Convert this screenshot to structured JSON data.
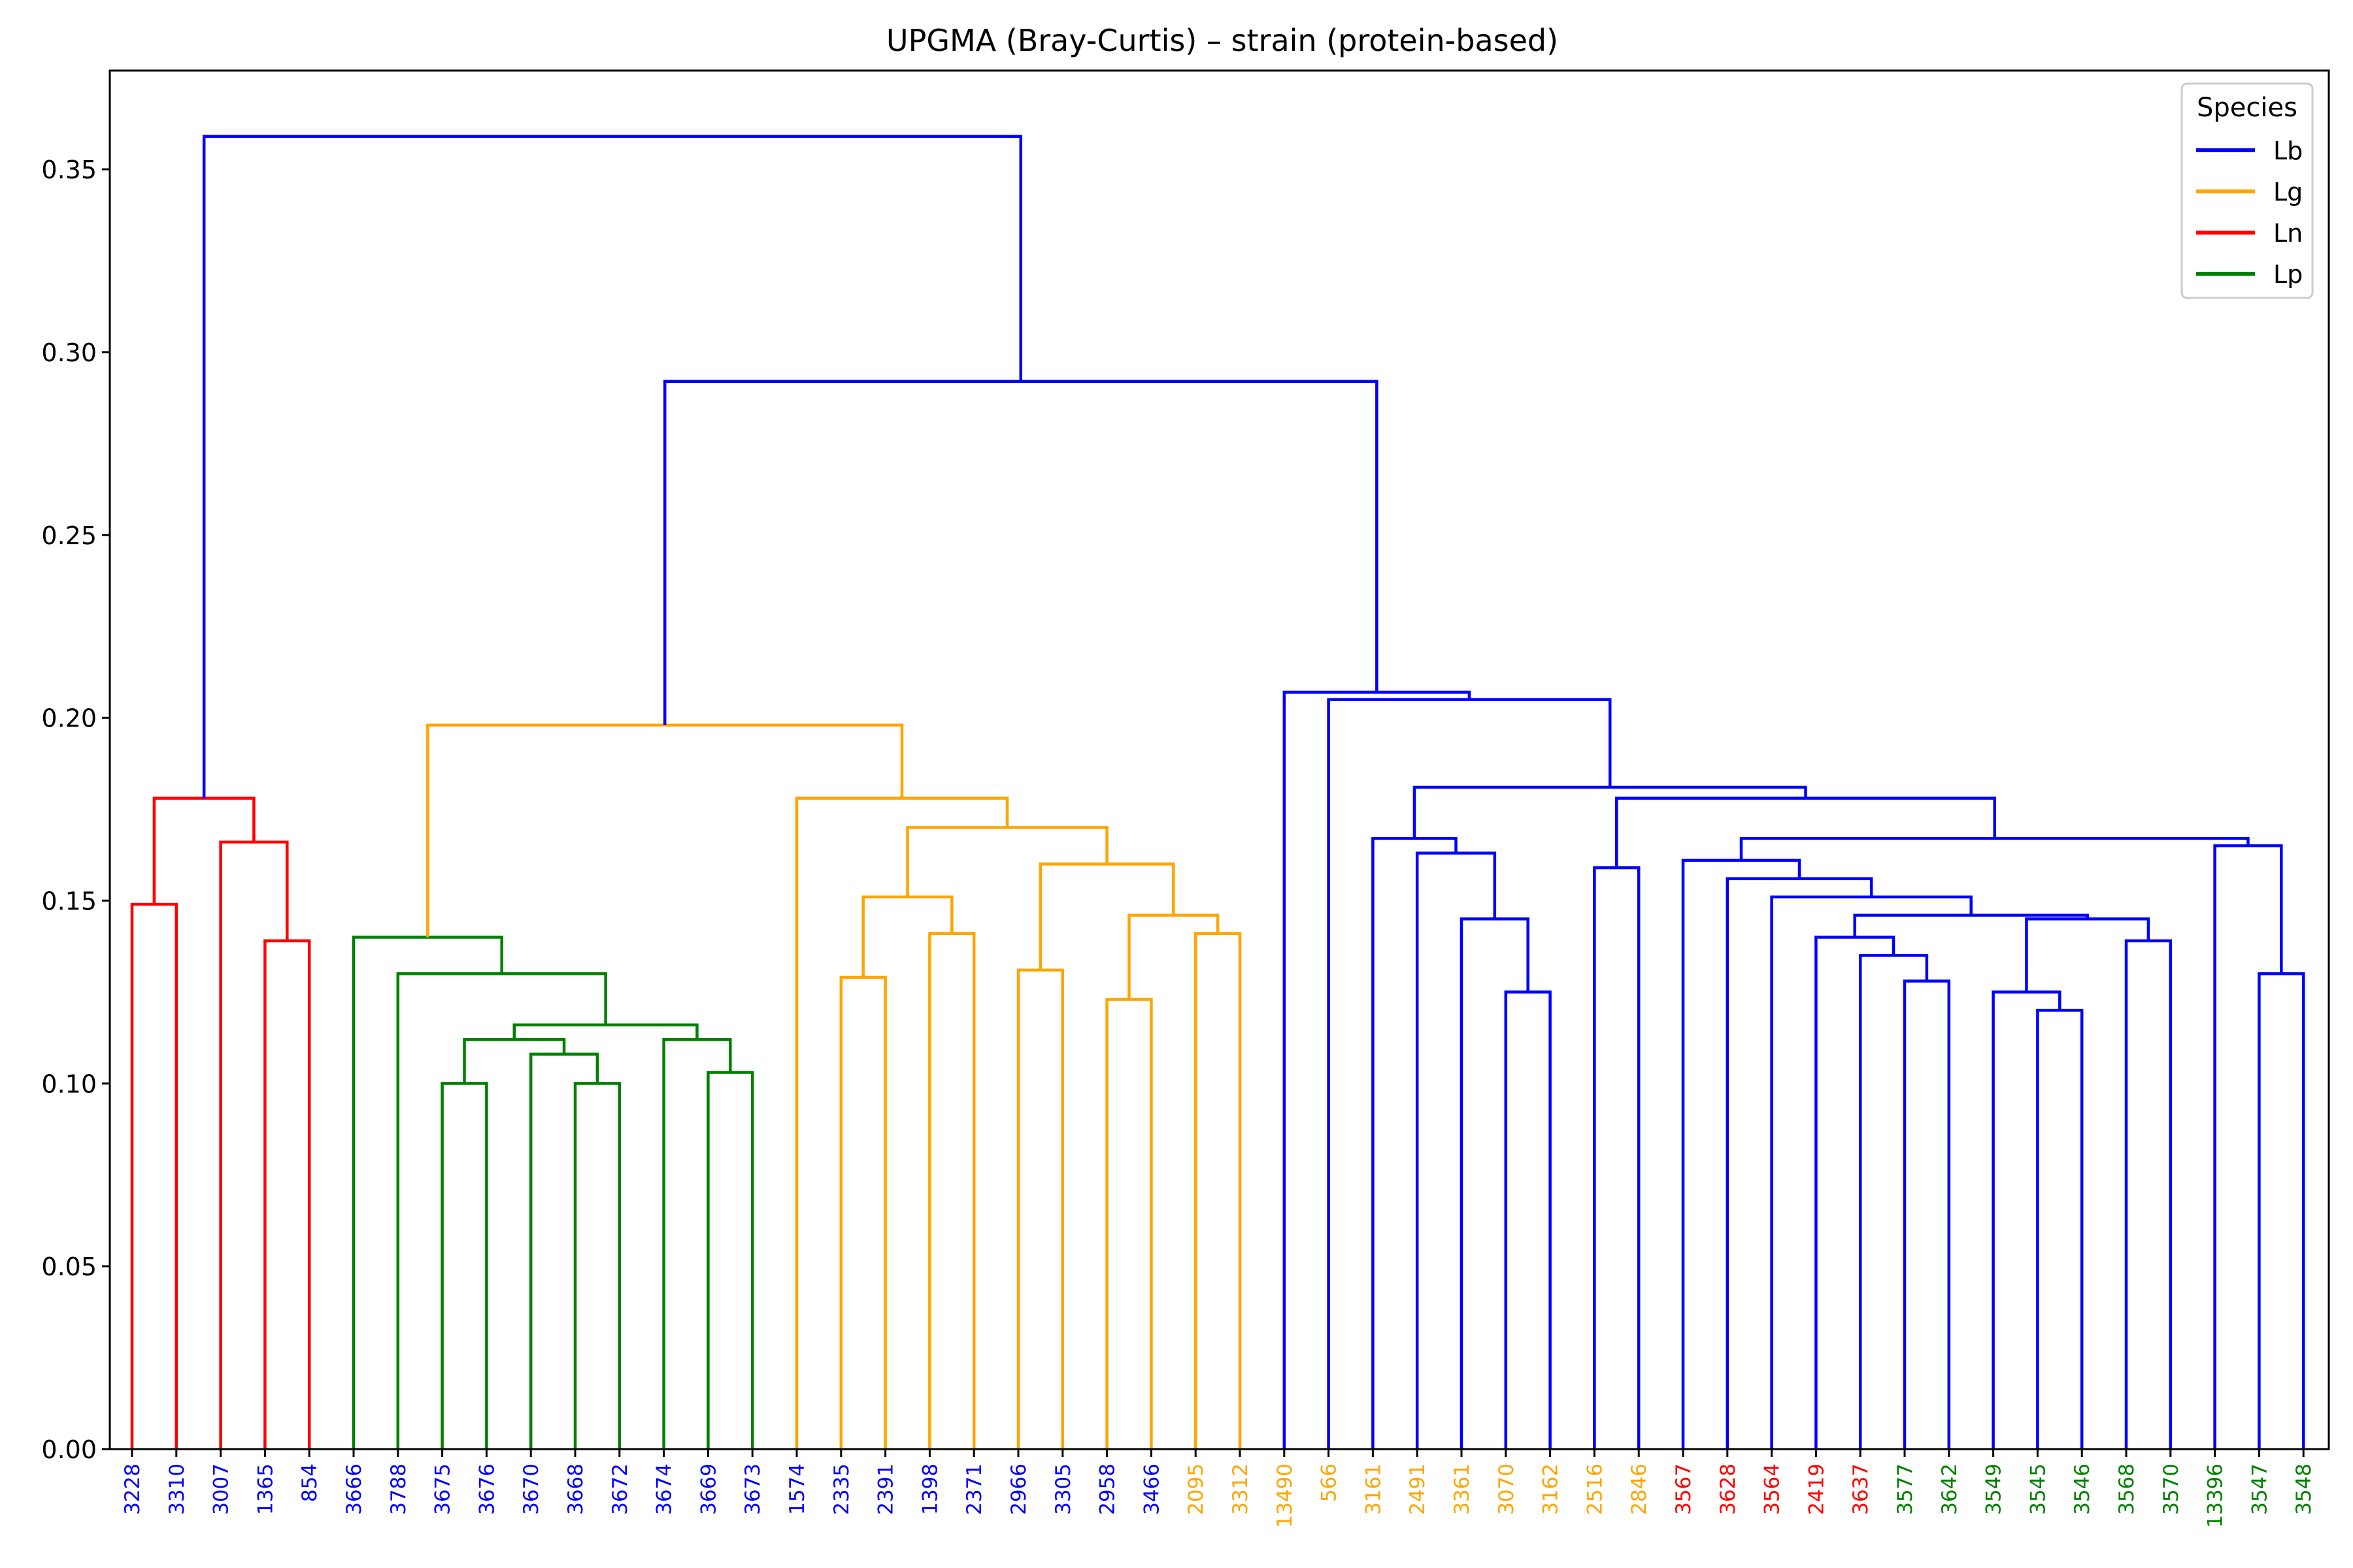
{
  "chart_data": {
    "type": "dendrogram",
    "title": "UPGMA (Bray-Curtis) – strain (protein-based)",
    "xlabel": "",
    "ylabel": "",
    "ylim": [
      0,
      0.377
    ],
    "yticks": [
      "0.00",
      "0.05",
      "0.10",
      "0.15",
      "0.20",
      "0.25",
      "0.30",
      "0.35"
    ],
    "grid": false,
    "legend": {
      "title": "Species",
      "placement": "top-right",
      "entries": [
        {
          "name": "Lb",
          "color": "#0000ff"
        },
        {
          "name": "Lg",
          "color": "#ffa500"
        },
        {
          "name": "Ln",
          "color": "#ff0000"
        },
        {
          "name": "Lp",
          "color": "#008000"
        }
      ]
    },
    "leaves": [
      {
        "label": "3228",
        "species": "Lb"
      },
      {
        "label": "3310",
        "species": "Lb"
      },
      {
        "label": "3007",
        "species": "Lb"
      },
      {
        "label": "1365",
        "species": "Lb"
      },
      {
        "label": "854",
        "species": "Lb"
      },
      {
        "label": "3666",
        "species": "Lb"
      },
      {
        "label": "3788",
        "species": "Lb"
      },
      {
        "label": "3675",
        "species": "Lb"
      },
      {
        "label": "3676",
        "species": "Lb"
      },
      {
        "label": "3670",
        "species": "Lb"
      },
      {
        "label": "3668",
        "species": "Lb"
      },
      {
        "label": "3672",
        "species": "Lb"
      },
      {
        "label": "3674",
        "species": "Lb"
      },
      {
        "label": "3669",
        "species": "Lb"
      },
      {
        "label": "3673",
        "species": "Lb"
      },
      {
        "label": "1574",
        "species": "Lb"
      },
      {
        "label": "2335",
        "species": "Lb"
      },
      {
        "label": "2391",
        "species": "Lb"
      },
      {
        "label": "1398",
        "species": "Lb"
      },
      {
        "label": "2371",
        "species": "Lb"
      },
      {
        "label": "2966",
        "species": "Lb"
      },
      {
        "label": "3305",
        "species": "Lb"
      },
      {
        "label": "2958",
        "species": "Lb"
      },
      {
        "label": "3466",
        "species": "Lb"
      },
      {
        "label": "2095",
        "species": "Lg"
      },
      {
        "label": "3312",
        "species": "Lg"
      },
      {
        "label": "13490",
        "species": "Lg"
      },
      {
        "label": "566",
        "species": "Lg"
      },
      {
        "label": "3161",
        "species": "Lg"
      },
      {
        "label": "2491",
        "species": "Lg"
      },
      {
        "label": "3361",
        "species": "Lg"
      },
      {
        "label": "3070",
        "species": "Lg"
      },
      {
        "label": "3162",
        "species": "Lg"
      },
      {
        "label": "2516",
        "species": "Lg"
      },
      {
        "label": "2846",
        "species": "Lg"
      },
      {
        "label": "3567",
        "species": "Ln"
      },
      {
        "label": "3628",
        "species": "Ln"
      },
      {
        "label": "3564",
        "species": "Ln"
      },
      {
        "label": "2419",
        "species": "Ln"
      },
      {
        "label": "3637",
        "species": "Ln"
      },
      {
        "label": "3577",
        "species": "Lp"
      },
      {
        "label": "3642",
        "species": "Lp"
      },
      {
        "label": "3549",
        "species": "Lp"
      },
      {
        "label": "3545",
        "species": "Lp"
      },
      {
        "label": "3546",
        "species": "Lp"
      },
      {
        "label": "3568",
        "species": "Lp"
      },
      {
        "label": "3570",
        "species": "Lp"
      },
      {
        "label": "13396",
        "species": "Lp"
      },
      {
        "label": "3547",
        "species": "Lp"
      },
      {
        "label": "3548",
        "species": "Lp"
      }
    ],
    "merges": [
      {
        "id": "n1",
        "height": 0.149,
        "children": [
          "3228",
          "3310"
        ],
        "color": "#ff0000"
      },
      {
        "id": "n2",
        "height": 0.139,
        "children": [
          "1365",
          "854"
        ],
        "color": "#ff0000"
      },
      {
        "id": "n3",
        "height": 0.166,
        "children": [
          "3007",
          "n2"
        ],
        "color": "#ff0000"
      },
      {
        "id": "n4",
        "height": 0.178,
        "children": [
          "n1",
          "n3"
        ],
        "color": "#ff0000"
      },
      {
        "id": "n5",
        "height": 0.1,
        "children": [
          "3675",
          "3676"
        ],
        "color": "#008000"
      },
      {
        "id": "n6",
        "height": 0.1,
        "children": [
          "3668",
          "3672"
        ],
        "color": "#008000"
      },
      {
        "id": "n7",
        "height": 0.108,
        "children": [
          "3670",
          "n6"
        ],
        "color": "#008000"
      },
      {
        "id": "n8",
        "height": 0.112,
        "children": [
          "n5",
          "n7"
        ],
        "color": "#008000"
      },
      {
        "id": "n9",
        "height": 0.103,
        "children": [
          "3669",
          "3673"
        ],
        "color": "#008000"
      },
      {
        "id": "n10",
        "height": 0.112,
        "children": [
          "3674",
          "n9"
        ],
        "color": "#008000"
      },
      {
        "id": "n11",
        "height": 0.116,
        "children": [
          "n8",
          "n10"
        ],
        "color": "#008000"
      },
      {
        "id": "n12",
        "height": 0.13,
        "children": [
          "3788",
          "n11"
        ],
        "color": "#008000"
      },
      {
        "id": "n13",
        "height": 0.14,
        "children": [
          "3666",
          "n12"
        ],
        "color": "#008000"
      },
      {
        "id": "n14",
        "height": 0.129,
        "children": [
          "2335",
          "2391"
        ],
        "color": "#ffa500"
      },
      {
        "id": "n15",
        "height": 0.141,
        "children": [
          "1398",
          "2371"
        ],
        "color": "#ffa500"
      },
      {
        "id": "n16",
        "height": 0.151,
        "children": [
          "n14",
          "n15"
        ],
        "color": "#ffa500"
      },
      {
        "id": "n17",
        "height": 0.131,
        "children": [
          "2966",
          "3305"
        ],
        "color": "#ffa500"
      },
      {
        "id": "n18",
        "height": 0.123,
        "children": [
          "2958",
          "3466"
        ],
        "color": "#ffa500"
      },
      {
        "id": "n19",
        "height": 0.141,
        "children": [
          "2095",
          "3312"
        ],
        "color": "#ffa500"
      },
      {
        "id": "n20",
        "height": 0.146,
        "children": [
          "n18",
          "n19"
        ],
        "color": "#ffa500"
      },
      {
        "id": "n21",
        "height": 0.16,
        "children": [
          "n17",
          "n20"
        ],
        "color": "#ffa500"
      },
      {
        "id": "n22",
        "height": 0.17,
        "children": [
          "n16",
          "n21"
        ],
        "color": "#ffa500"
      },
      {
        "id": "n23",
        "height": 0.178,
        "children": [
          "1574",
          "n22"
        ],
        "color": "#ffa500"
      },
      {
        "id": "n24",
        "height": 0.198,
        "children": [
          "n13",
          "n23"
        ],
        "color": "#ffa500"
      },
      {
        "id": "n25",
        "height": 0.125,
        "children": [
          "3070",
          "3162"
        ],
        "color": "#0000ff"
      },
      {
        "id": "n26",
        "height": 0.145,
        "children": [
          "3361",
          "n25"
        ],
        "color": "#0000ff"
      },
      {
        "id": "n27",
        "height": 0.163,
        "children": [
          "2491",
          "n26"
        ],
        "color": "#0000ff"
      },
      {
        "id": "n28",
        "height": 0.167,
        "children": [
          "3161",
          "n27"
        ],
        "color": "#0000ff"
      },
      {
        "id": "n29",
        "height": 0.159,
        "children": [
          "2516",
          "2846"
        ],
        "color": "#0000ff"
      },
      {
        "id": "n30",
        "height": 0.128,
        "children": [
          "3577",
          "3642"
        ],
        "color": "#0000ff"
      },
      {
        "id": "n31",
        "height": 0.135,
        "children": [
          "3637",
          "n30"
        ],
        "color": "#0000ff"
      },
      {
        "id": "n32",
        "height": 0.14,
        "children": [
          "2419",
          "n31"
        ],
        "color": "#0000ff"
      },
      {
        "id": "n33",
        "height": 0.12,
        "children": [
          "3545",
          "3546"
        ],
        "color": "#0000ff"
      },
      {
        "id": "n34",
        "height": 0.125,
        "children": [
          "3549",
          "n33"
        ],
        "color": "#0000ff"
      },
      {
        "id": "n35",
        "height": 0.139,
        "children": [
          "3568",
          "3570"
        ],
        "color": "#0000ff"
      },
      {
        "id": "n36",
        "height": 0.145,
        "children": [
          "n34",
          "n35"
        ],
        "color": "#0000ff"
      },
      {
        "id": "n37",
        "height": 0.146,
        "children": [
          "n32",
          "n36"
        ],
        "color": "#0000ff"
      },
      {
        "id": "n38",
        "height": 0.151,
        "children": [
          "3564",
          "n37"
        ],
        "color": "#0000ff"
      },
      {
        "id": "n39",
        "height": 0.156,
        "children": [
          "3628",
          "n38"
        ],
        "color": "#0000ff"
      },
      {
        "id": "n40",
        "height": 0.161,
        "children": [
          "3567",
          "n39"
        ],
        "color": "#0000ff"
      },
      {
        "id": "n41",
        "height": 0.13,
        "children": [
          "3547",
          "3548"
        ],
        "color": "#0000ff"
      },
      {
        "id": "n42",
        "height": 0.165,
        "children": [
          "13396",
          "n41"
        ],
        "color": "#0000ff"
      },
      {
        "id": "n43",
        "height": 0.167,
        "children": [
          "n40",
          "n42"
        ],
        "color": "#0000ff"
      },
      {
        "id": "n44",
        "height": 0.178,
        "children": [
          "n29",
          "n43"
        ],
        "color": "#0000ff"
      },
      {
        "id": "n45",
        "height": 0.181,
        "children": [
          "n28",
          "n44"
        ],
        "color": "#0000ff"
      },
      {
        "id": "n46",
        "height": 0.205,
        "children": [
          "566",
          "n45"
        ],
        "color": "#0000ff"
      },
      {
        "id": "n47",
        "height": 0.207,
        "children": [
          "13490",
          "n46"
        ],
        "color": "#0000ff"
      },
      {
        "id": "n48",
        "height": 0.292,
        "children": [
          "n24",
          "n47"
        ],
        "color": "#0000ff"
      },
      {
        "id": "n49",
        "height": 0.359,
        "children": [
          "n4",
          "n48"
        ],
        "color": "#0000ff"
      }
    ]
  }
}
